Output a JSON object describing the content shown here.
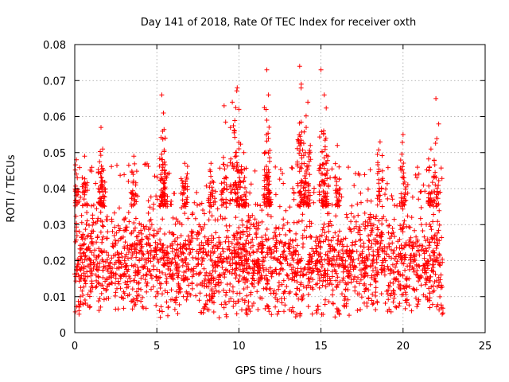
{
  "chart_data": {
    "type": "scatter",
    "title": "Day 141 of 2018, Rate Of TEC Index for receiver oxth",
    "xlabel": "GPS time / hours",
    "ylabel": "ROTI / TECUs",
    "xlim": [
      0,
      25
    ],
    "ylim": [
      0,
      0.08
    ],
    "xticks": [
      "0",
      "5",
      "10",
      "15",
      "20",
      "25"
    ],
    "yticks": [
      "0",
      "0.01",
      "0.02",
      "0.03",
      "0.04",
      "0.05",
      "0.06",
      "0.07",
      "0.08"
    ],
    "grid": true,
    "marker": "+",
    "series_color": "#ff0000",
    "series": [
      {
        "name": "ROTI",
        "x_range_observed": [
          0,
          22.4
        ],
        "bulk_range": [
          0.005,
          0.035
        ],
        "peaks": [
          {
            "x": 0.1,
            "y": 0.048
          },
          {
            "x": 0.6,
            "y": 0.049
          },
          {
            "x": 1.6,
            "y": 0.057
          },
          {
            "x": 1.7,
            "y": 0.051
          },
          {
            "x": 3.6,
            "y": 0.049
          },
          {
            "x": 5.3,
            "y": 0.066
          },
          {
            "x": 5.4,
            "y": 0.061
          },
          {
            "x": 5.5,
            "y": 0.054
          },
          {
            "x": 6.7,
            "y": 0.047
          },
          {
            "x": 8.3,
            "y": 0.047
          },
          {
            "x": 9.1,
            "y": 0.063
          },
          {
            "x": 9.6,
            "y": 0.064
          },
          {
            "x": 9.9,
            "y": 0.068
          },
          {
            "x": 10.0,
            "y": 0.062
          },
          {
            "x": 10.3,
            "y": 0.05
          },
          {
            "x": 11.7,
            "y": 0.073
          },
          {
            "x": 11.8,
            "y": 0.066
          },
          {
            "x": 11.7,
            "y": 0.059
          },
          {
            "x": 13.7,
            "y": 0.074
          },
          {
            "x": 13.8,
            "y": 0.069
          },
          {
            "x": 14.2,
            "y": 0.064
          },
          {
            "x": 14.1,
            "y": 0.057
          },
          {
            "x": 15.0,
            "y": 0.073
          },
          {
            "x": 15.2,
            "y": 0.066
          },
          {
            "x": 15.3,
            "y": 0.054
          },
          {
            "x": 16.0,
            "y": 0.052
          },
          {
            "x": 18.6,
            "y": 0.053
          },
          {
            "x": 20.0,
            "y": 0.055
          },
          {
            "x": 22.0,
            "y": 0.065
          },
          {
            "x": 21.7,
            "y": 0.051
          }
        ],
        "dips": [
          {
            "x": 0.4,
            "y": 0.006
          },
          {
            "x": 7.8,
            "y": 0.005
          },
          {
            "x": 10.5,
            "y": 0.005
          },
          {
            "x": 13.6,
            "y": 0.004
          },
          {
            "x": 16.0,
            "y": 0.004
          },
          {
            "x": 22.3,
            "y": 0.005
          }
        ]
      }
    ]
  }
}
